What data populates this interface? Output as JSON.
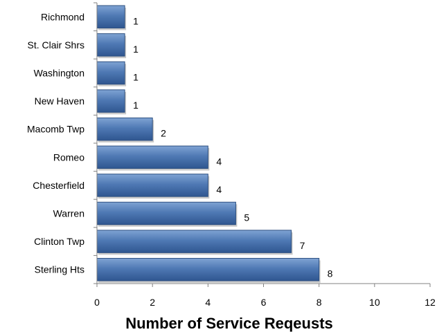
{
  "chart_data": {
    "type": "bar",
    "orientation": "horizontal",
    "categories": [
      "Richmond",
      "St. Clair Shrs",
      "Washington",
      "New Haven",
      "Macomb Twp",
      "Romeo",
      "Chesterfield",
      "Warren",
      "Clinton Twp",
      "Sterling Hts"
    ],
    "values": [
      1,
      1,
      1,
      1,
      2,
      4,
      4,
      5,
      7,
      8
    ],
    "xlabel": "Number of Service Reqeusts",
    "ylabel": "",
    "xlim": [
      0,
      12
    ],
    "xticks": [
      0,
      2,
      4,
      6,
      8,
      10,
      12
    ],
    "grid": false,
    "legend": "none",
    "colors": {
      "bar": "#4a74b0",
      "bar_edge": "#2c4f80"
    }
  }
}
